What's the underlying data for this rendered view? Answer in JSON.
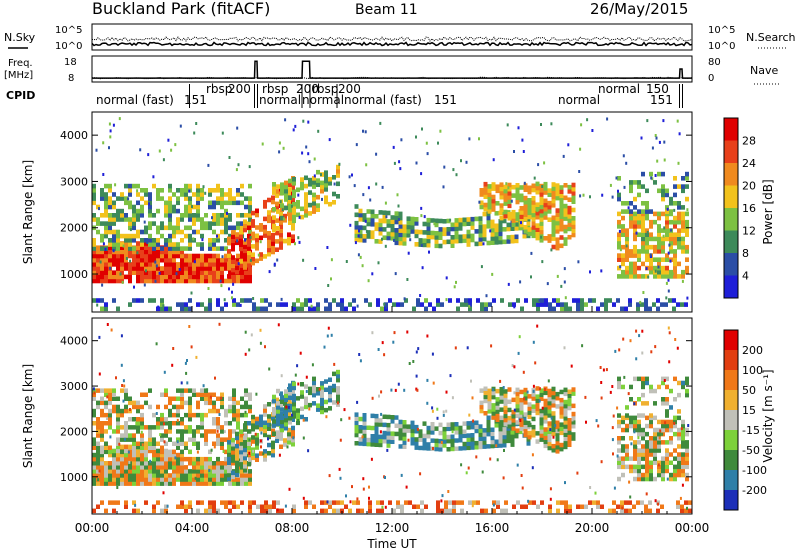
{
  "header": {
    "station": "Buckland Park (fitACF)",
    "beam": "Beam 11",
    "date": "26/May/2015"
  },
  "side_labels": {
    "nsky": "N.Sky",
    "freq_line1": "Freq.",
    "freq_line2": "[MHz]",
    "cpid": "CPID",
    "nsearch": "N.Search",
    "nave": "Nave"
  },
  "noise_panel": {
    "left_ticks": [
      "10^5",
      "10^0"
    ],
    "right_ticks": [
      "10^5",
      "10^0"
    ]
  },
  "freq_panel": {
    "left_ticks": [
      "18",
      "8"
    ],
    "right_ticks": [
      "80",
      "0"
    ]
  },
  "cpid_labels": [
    {
      "text": "normal (fast)",
      "row": 1
    },
    {
      "text": "151",
      "row": 1
    },
    {
      "text": "rbsp",
      "row": 0
    },
    {
      "text": "200",
      "row": 0
    },
    {
      "text": "normal",
      "row": 1
    },
    {
      "text": "rbsp",
      "row": 0
    },
    {
      "text": "200",
      "row": 0
    },
    {
      "text": "normal",
      "row": 1
    },
    {
      "text": "rbsp",
      "row": 0
    },
    {
      "text": "200",
      "row": 0
    },
    {
      "text": "normal (fast)",
      "row": 1
    },
    {
      "text": "151",
      "row": 1
    },
    {
      "text": "normal",
      "row": 0
    },
    {
      "text": "150",
      "row": 0
    },
    {
      "text": "normal",
      "row": 1
    },
    {
      "text": "151",
      "row": 1
    }
  ],
  "chart_data": [
    {
      "type": "heatmap",
      "title": "",
      "xlabel": "Time UT",
      "ylabel": "Slant Range [km]",
      "colorbar_label": "Power [dB]",
      "colorbar_ticks": [
        "28",
        "24",
        "20",
        "16",
        "12",
        "8",
        "4"
      ],
      "colorbar_range": [
        0,
        30
      ],
      "x_ticks": [
        "00:00",
        "04:00",
        "08:00",
        "12:00",
        "16:00",
        "20:00",
        "00:00"
      ],
      "y_ticks": [
        "1000",
        "2000",
        "3000",
        "4000"
      ],
      "xlim": [
        0,
        24
      ],
      "ylim": [
        180,
        4500
      ],
      "colors": [
        "#1f1fd8",
        "#2b4ea6",
        "#3d8a5a",
        "#7dc142",
        "#f2c21c",
        "#f08a1e",
        "#e8401a",
        "#e00000"
      ]
    },
    {
      "type": "heatmap",
      "title": "",
      "xlabel": "Time UT",
      "ylabel": "Slant Range [km]",
      "colorbar_label": "Velocity [m s⁻¹]",
      "colorbar_ticks": [
        "200",
        "100",
        "50",
        "15",
        "-15",
        "-50",
        "-100",
        "-200"
      ],
      "colorbar_range": [
        -250,
        250
      ],
      "x_ticks": [
        "00:00",
        "04:00",
        "08:00",
        "12:00",
        "16:00",
        "20:00",
        "00:00"
      ],
      "y_ticks": [
        "1000",
        "2000",
        "3000",
        "4000"
      ],
      "xlim": [
        0,
        24
      ],
      "ylim": [
        180,
        4500
      ],
      "colors": [
        "#1c2fb8",
        "#2f7fa8",
        "#3f8a3c",
        "#7dd13a",
        "#c0c0b8",
        "#f0b030",
        "#f07818",
        "#e23e10",
        "#e00000"
      ]
    }
  ],
  "footer": {
    "xlabel": "Time UT"
  }
}
